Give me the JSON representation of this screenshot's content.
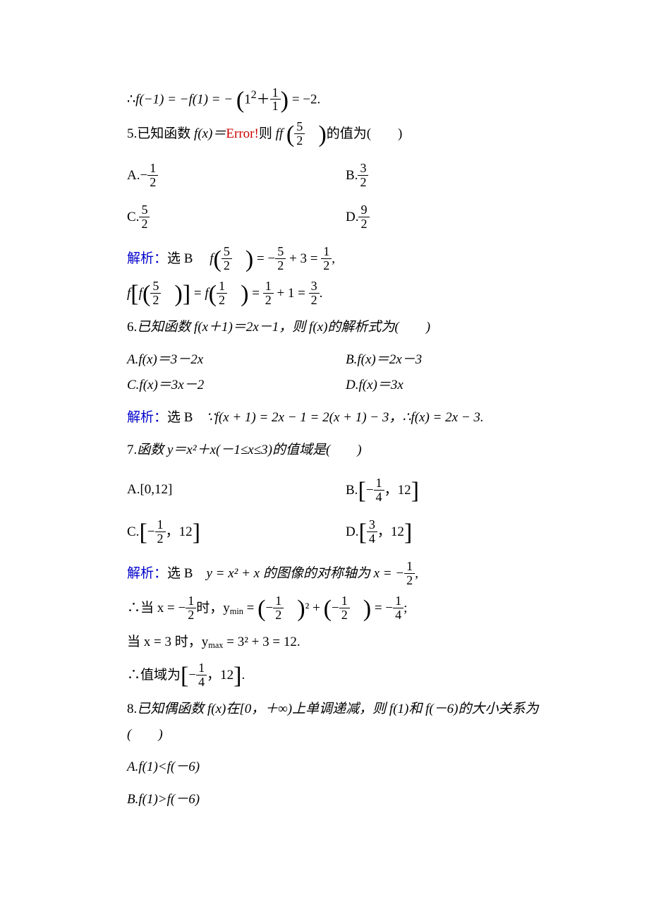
{
  "colors": {
    "text": "#000000",
    "blue": "#0000cc",
    "red": "#cc0000",
    "background": "#ffffff"
  },
  "typography": {
    "body_fontsize_pt": 14,
    "line_height": 1.9,
    "font_family": "Times New Roman / SimSun"
  },
  "prev_tail": {
    "expr_prefix": "∴",
    "expr": "f(−1) = −f(1) = −",
    "term_num": "1",
    "term_den": "1",
    "square_base": "1",
    "square_exp": "2",
    "result": "= −2."
  },
  "q5": {
    "number": "5.",
    "stem_a": "已知函数 ",
    "fx": "f(x)＝",
    "error": "Error!",
    "stem_b": "则 ",
    "ff": "ff",
    "arg_num": "5",
    "arg_den": "2",
    "stem_c": "的值为(　　)",
    "optA_label": "A.−",
    "optA_num": "1",
    "optA_den": "2",
    "optB_label": "B.",
    "optB_num": "3",
    "optB_den": "2",
    "optC_label": "C.",
    "optC_num": "5",
    "optC_den": "2",
    "optD_label": "D.",
    "optD_num": "9",
    "optD_den": "2",
    "sol_label": "解析：",
    "sol_choice": "选 B　",
    "sol_l1_a": "f",
    "sol_l1_n1": "5",
    "sol_l1_d1": "2",
    "sol_l1_mid": " = −",
    "sol_l1_n2": "5",
    "sol_l1_d2": "2",
    "sol_l1_mid2": " + 3 = ",
    "sol_l1_n3": "1",
    "sol_l1_d3": "2",
    "sol_l1_end": ",",
    "sol_l2_a": "f",
    "sol_l2_b": "f",
    "sol_l2_n1": "5",
    "sol_l2_d1": "2",
    "sol_l2_mid": " = ",
    "sol_l2_c": "f",
    "sol_l2_n2": "1",
    "sol_l2_d2": "2",
    "sol_l2_mid2": " = ",
    "sol_l2_n3": "1",
    "sol_l2_d3": "2",
    "sol_l2_mid3": " + 1 = ",
    "sol_l2_n4": "3",
    "sol_l2_d4": "2",
    "sol_l2_end": "."
  },
  "q6": {
    "number": "6.",
    "stem": "已知函数 f(x＋1)＝2x－1，则 f(x)的解析式为(　　)",
    "optA": "A.f(x)＝3－2x",
    "optB": "B.f(x)＝2x－3",
    "optC": "C.f(x)＝3x－2",
    "optD": "D.f(x)＝3x",
    "sol_label": "解析：",
    "sol_choice": "选 B　",
    "sol_text": "∵f(x + 1) = 2x − 1 = 2(x + 1) − 3，∴f(x) = 2x − 3."
  },
  "q7": {
    "number": "7.",
    "stem": "函数 y＝x²＋x(－1≤x≤3)的值域是(　　)",
    "optA": "A.[0,12]",
    "optB_label": "B.",
    "optB_n": "1",
    "optB_d": "4",
    "optB_r": "12",
    "optC_label": "C.",
    "optC_n": "1",
    "optC_d": "2",
    "optC_r": "12",
    "optD_label": "D.",
    "optD_n": "3",
    "optD_d": "4",
    "optD_r": "12",
    "sol_label": "解析：",
    "sol_choice": "选 B　",
    "sol_l1_a": "y = x² + x 的图像的对称轴为 x = −",
    "sol_l1_n": "1",
    "sol_l1_d": "2",
    "sol_l1_end": ",",
    "sol_l2_a": "∴当 x = −",
    "sol_l2_n1": "1",
    "sol_l2_d1": "2",
    "sol_l2_b": "时，y",
    "sol_l2_sub": "min",
    "sol_l2_c": " = ",
    "sol_l2_n2": "1",
    "sol_l2_d2": "2",
    "sol_l2_exp": "²",
    "sol_l2_d": " + ",
    "sol_l2_n3": "1",
    "sol_l2_d3": "2",
    "sol_l2_e": " = −",
    "sol_l2_n4": "1",
    "sol_l2_d4": "4",
    "sol_l2_end": ";",
    "sol_l3_a": "当 x = 3 时，y",
    "sol_l3_sub": "max",
    "sol_l3_b": " = 3² + 3 = 12.",
    "sol_l4_a": "∴值域为",
    "sol_l4_n": "1",
    "sol_l4_d": "4",
    "sol_l4_r": "12",
    "sol_l4_end": "."
  },
  "q8": {
    "number": "8.",
    "stem": "已知偶函数 f(x)在[0，＋∞)上单调递减，则 f(1)和 f(－6)的大小关系为(　　)",
    "optA": "A.f(1)<f(－6)",
    "optB": "B.f(1)>f(－6)"
  }
}
